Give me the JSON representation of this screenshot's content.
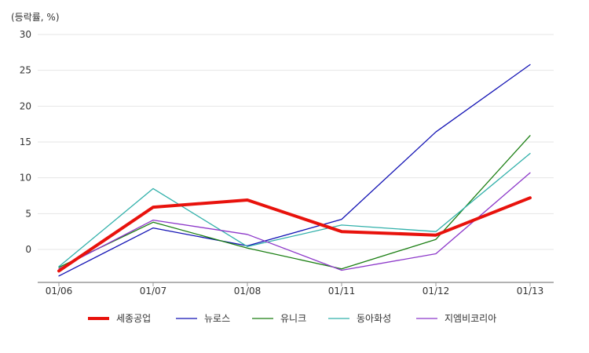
{
  "chart_data": {
    "type": "line",
    "unit_label": "(등락률, %)",
    "categories": [
      "01/06",
      "01/07",
      "01/08",
      "01/11",
      "01/12",
      "01/13"
    ],
    "y_ticks": [
      0,
      5,
      10,
      15,
      20,
      25,
      30
    ],
    "ylim": [
      -4.5,
      30
    ],
    "grid": true,
    "legend_position": "bottom",
    "series": [
      {
        "name": "세종공업",
        "color": "#e8120c",
        "width": 4,
        "values": [
          -3.0,
          5.9,
          6.9,
          2.5,
          2.0,
          7.2
        ]
      },
      {
        "name": "뉴로스",
        "color": "#1212b4",
        "width": 1.3,
        "values": [
          -3.7,
          3.0,
          0.5,
          4.2,
          16.4,
          25.8
        ]
      },
      {
        "name": "유니크",
        "color": "#1a7e12",
        "width": 1.3,
        "values": [
          -2.5,
          3.8,
          0.2,
          -2.7,
          1.4,
          15.9
        ]
      },
      {
        "name": "동아화성",
        "color": "#31b0aa",
        "width": 1.3,
        "values": [
          -2.4,
          8.5,
          0.4,
          3.4,
          2.5,
          13.4
        ]
      },
      {
        "name": "지엠비코리아",
        "color": "#8c37c9",
        "width": 1.3,
        "values": [
          -2.7,
          4.1,
          2.1,
          -2.9,
          -0.6,
          10.7
        ]
      }
    ]
  }
}
